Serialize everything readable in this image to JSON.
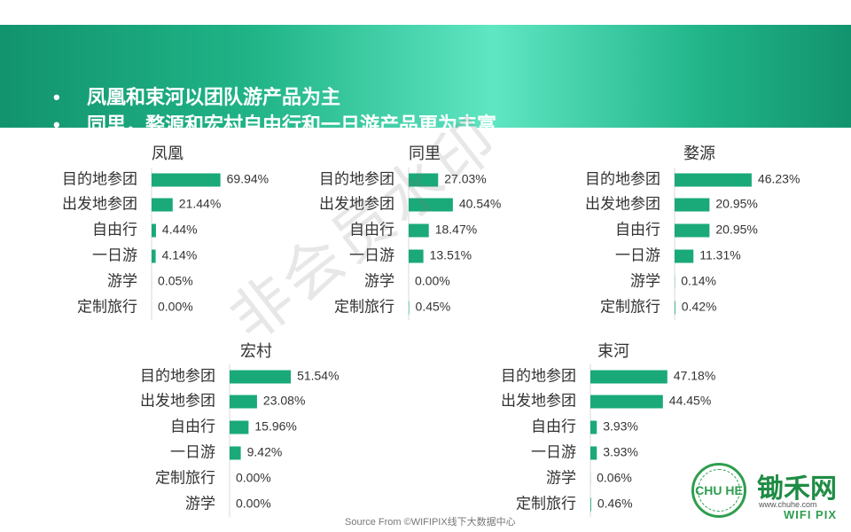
{
  "header": {
    "bullets": [
      "凤凰和束河以团队游产品为主",
      "同里，婺源和宏村自由行和一日游产品更为丰富"
    ],
    "bullet_marker": "•"
  },
  "watermark": "非会员水印",
  "source": "Source From ©WIFIPIX线下大数据中心",
  "logo": {
    "badge_text": "CHU HE",
    "name": "锄禾网",
    "url": "www.chuhe.com",
    "brand": "WIFI PIX"
  },
  "colors": {
    "bar": "#1aa979",
    "banner": "#1aa57a"
  },
  "chart_data": [
    {
      "type": "bar",
      "orientation": "horizontal",
      "title": "凤凰",
      "categories": [
        "目的地参团",
        "出发地参团",
        "自由行",
        "一日游",
        "游学",
        "定制旅行"
      ],
      "values": [
        69.94,
        21.44,
        4.44,
        4.14,
        0.05,
        0.0
      ],
      "labels": [
        "69.94%",
        "21.44%",
        "4.44%",
        "4.14%",
        "0.05%",
        "0.00%"
      ]
    },
    {
      "type": "bar",
      "orientation": "horizontal",
      "title": "同里",
      "categories": [
        "目的地参团",
        "出发地参团",
        "自由行",
        "一日游",
        "游学",
        "定制旅行"
      ],
      "values": [
        27.03,
        40.54,
        18.47,
        13.51,
        0.0,
        0.45
      ],
      "labels": [
        "27.03%",
        "40.54%",
        "18.47%",
        "13.51%",
        "0.00%",
        "0.45%"
      ]
    },
    {
      "type": "bar",
      "orientation": "horizontal",
      "title": "婺源",
      "categories": [
        "目的地参团",
        "出发地参团",
        "自由行",
        "一日游",
        "游学",
        "定制旅行"
      ],
      "values": [
        46.23,
        20.95,
        20.95,
        11.31,
        0.14,
        0.42
      ],
      "labels": [
        "46.23%",
        "20.95%",
        "20.95%",
        "11.31%",
        "0.14%",
        "0.42%"
      ]
    },
    {
      "type": "bar",
      "orientation": "horizontal",
      "title": "宏村",
      "categories": [
        "目的地参团",
        "出发地参团",
        "自由行",
        "一日游",
        "定制旅行",
        "游学"
      ],
      "values": [
        51.54,
        23.08,
        15.96,
        9.42,
        0.0,
        0.0
      ],
      "labels": [
        "51.54%",
        "23.08%",
        "15.96%",
        "9.42%",
        "0.00%",
        "0.00%"
      ]
    },
    {
      "type": "bar",
      "orientation": "horizontal",
      "title": "束河",
      "categories": [
        "目的地参团",
        "出发地参团",
        "自由行",
        "一日游",
        "游学",
        "定制旅行"
      ],
      "values": [
        47.18,
        44.45,
        3.93,
        3.93,
        0.06,
        0.46
      ],
      "labels": [
        "47.18%",
        "44.45%",
        "3.93%",
        "3.93%",
        "0.06%",
        "0.46%"
      ]
    }
  ]
}
